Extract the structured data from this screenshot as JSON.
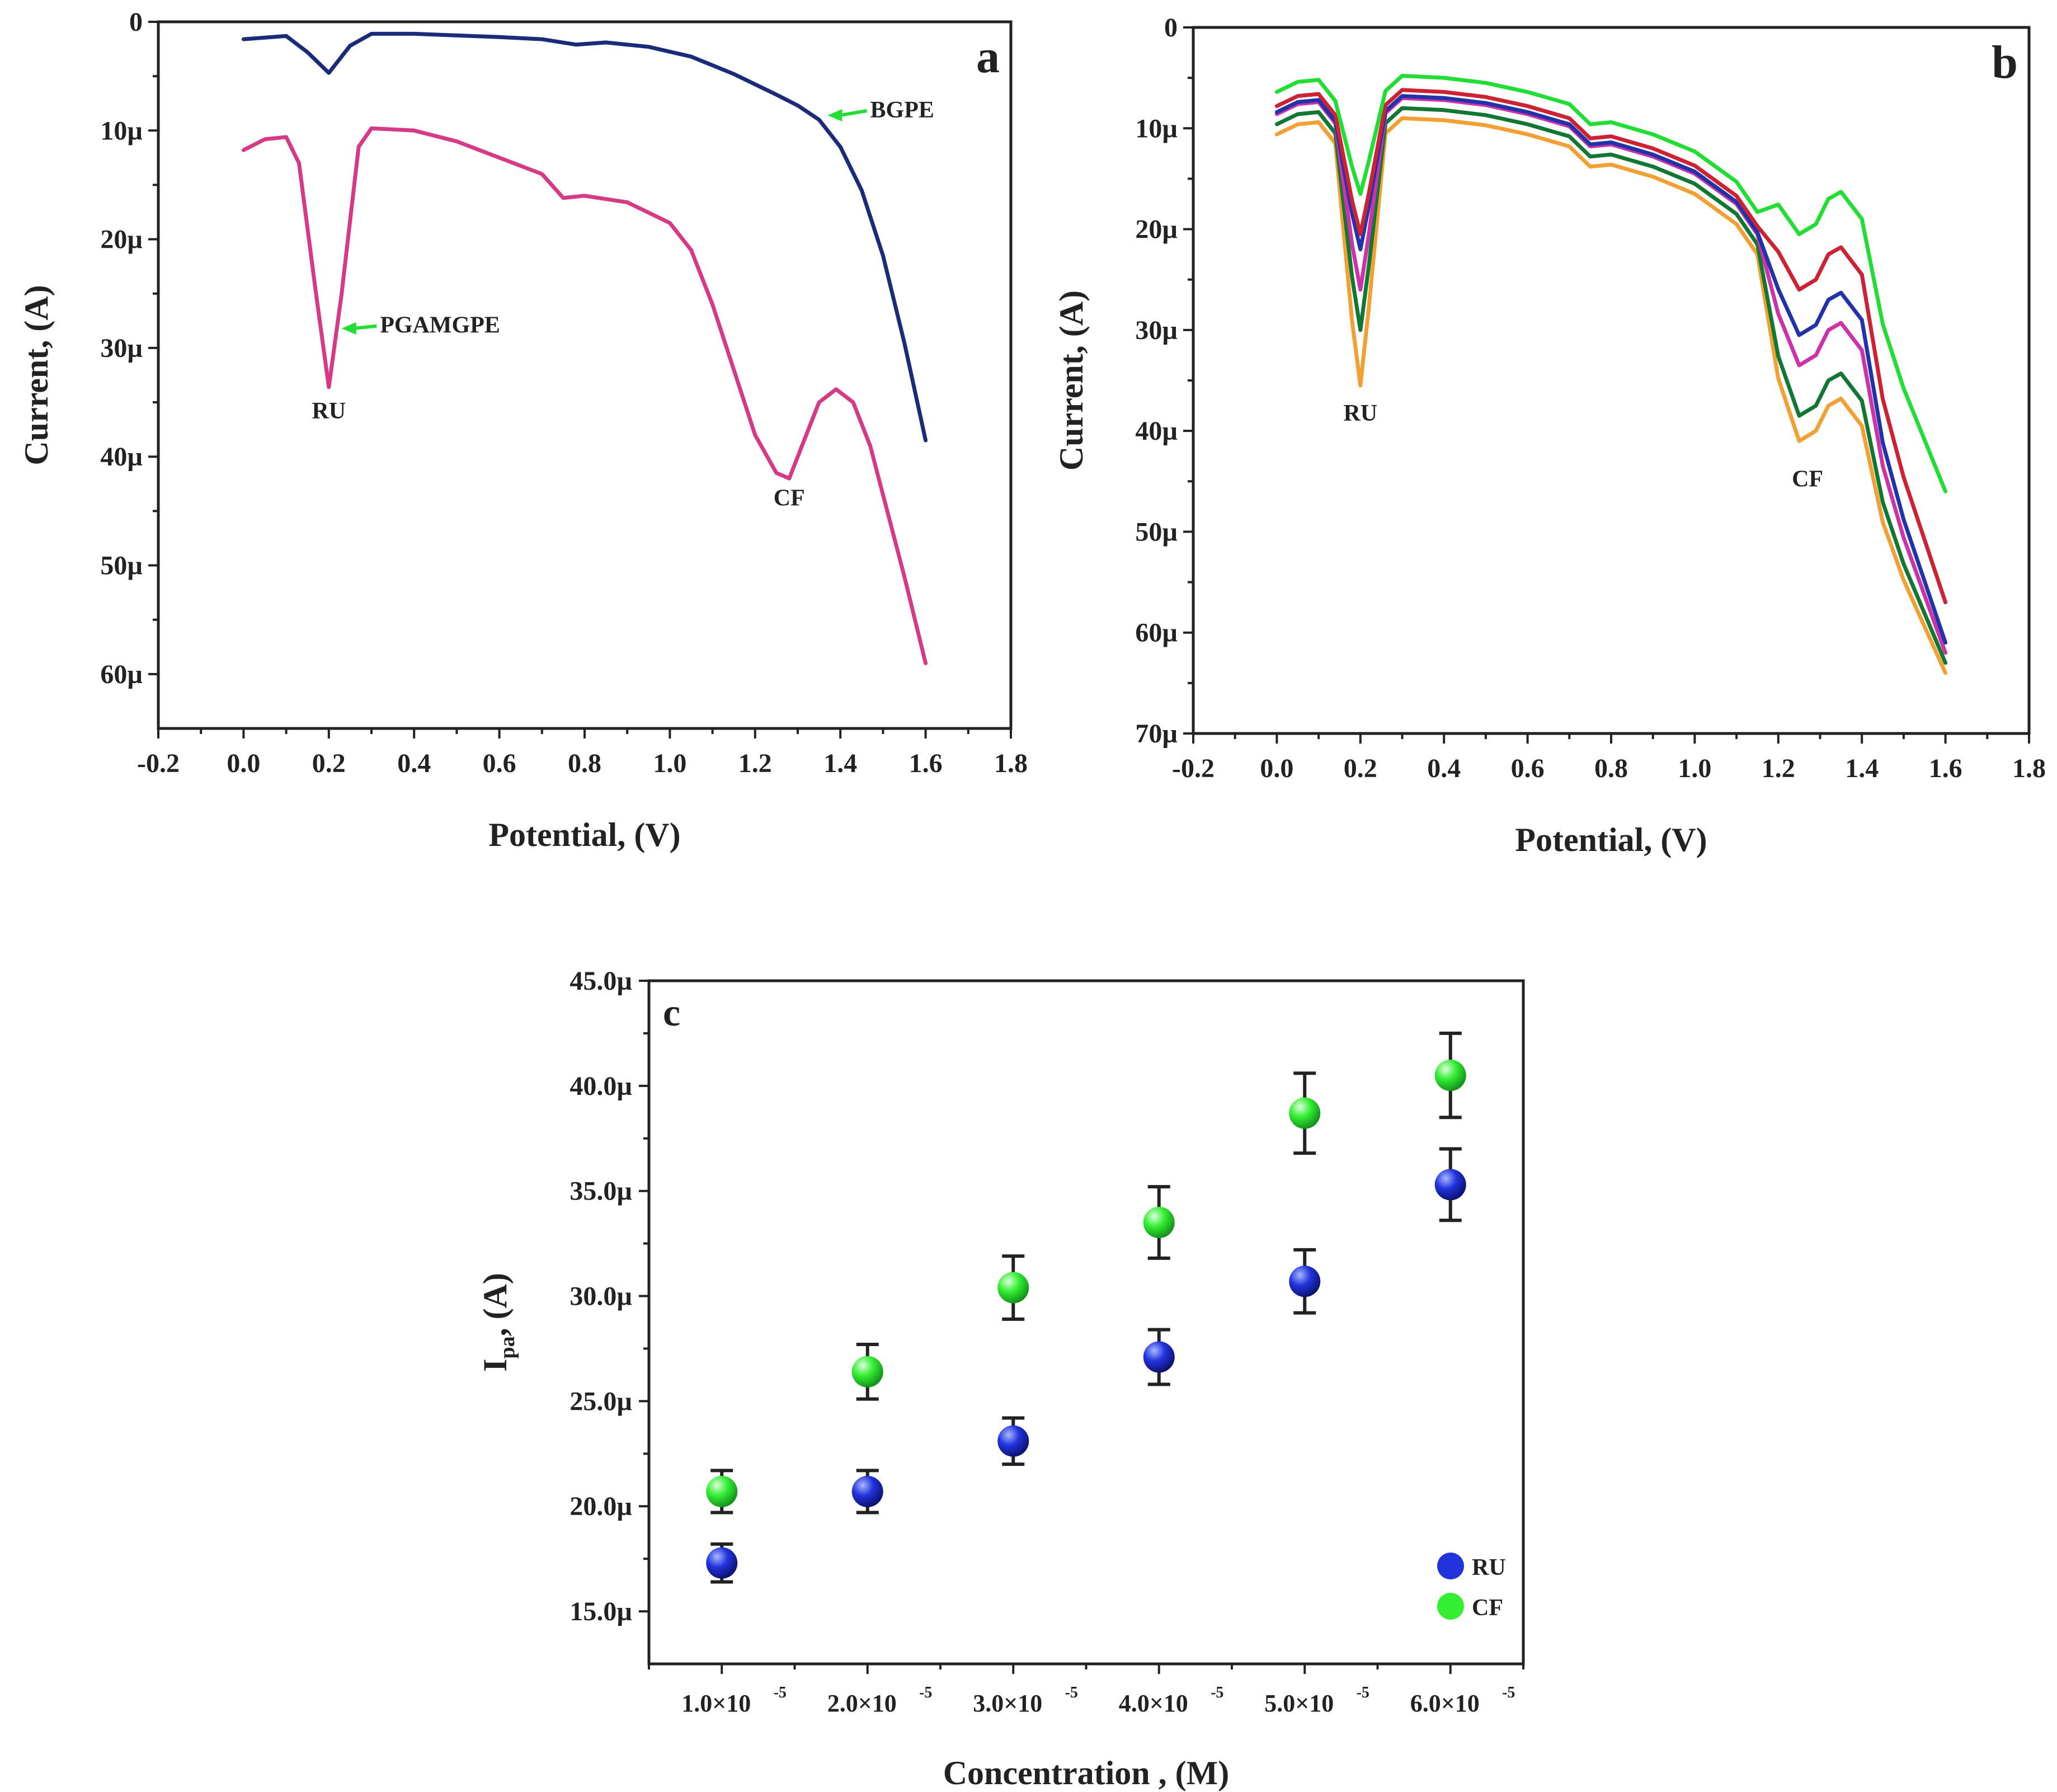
{
  "colors": {
    "blue_curve": "#1a2b7a",
    "pink_curve": "#d63a86",
    "arrow_green": "#22dd33",
    "ru_marker": "#2233dd",
    "cf_marker": "#33ee33",
    "axis": "#222222"
  },
  "chart_data": [
    {
      "id": "a",
      "type": "line",
      "panel_label": "a",
      "xlabel": "Potential, (V)",
      "ylabel": "Current, (A)",
      "xlim": [
        -0.2,
        1.8
      ],
      "ylim": [
        0,
        65
      ],
      "y_inverted": true,
      "x_ticks": [
        -0.2,
        0.0,
        0.2,
        0.4,
        0.6,
        0.8,
        1.0,
        1.2,
        1.4,
        1.6,
        1.8
      ],
      "x_tick_labels": [
        "-0.2",
        "0.0",
        "0.2",
        "0.4",
        "0.6",
        "0.8",
        "1.0",
        "1.2",
        "1.4",
        "1.6",
        "1.8"
      ],
      "y_ticks": [
        0,
        10,
        20,
        30,
        40,
        50,
        60
      ],
      "y_tick_labels": [
        "0",
        "10µ",
        "20µ",
        "30µ",
        "40µ",
        "50µ",
        "60µ"
      ],
      "series": [
        {
          "name": "BGPE",
          "color_key": "blue_curve",
          "x": [
            0.0,
            0.1,
            0.15,
            0.2,
            0.25,
            0.3,
            0.4,
            0.6,
            0.7,
            0.78,
            0.85,
            0.95,
            1.05,
            1.15,
            1.25,
            1.3,
            1.35,
            1.4,
            1.45,
            1.5,
            1.55,
            1.6
          ],
          "y": [
            1.6,
            1.3,
            2.8,
            4.7,
            2.2,
            1.1,
            1.1,
            1.4,
            1.6,
            2.1,
            1.9,
            2.3,
            3.2,
            4.8,
            6.7,
            7.7,
            9.0,
            11.5,
            15.5,
            21.5,
            29.5,
            38.5
          ]
        },
        {
          "name": "PGAMGPE",
          "color_key": "pink_curve",
          "x": [
            0.0,
            0.05,
            0.1,
            0.13,
            0.17,
            0.2,
            0.23,
            0.27,
            0.3,
            0.4,
            0.5,
            0.6,
            0.7,
            0.75,
            0.8,
            0.9,
            1.0,
            1.05,
            1.1,
            1.15,
            1.2,
            1.25,
            1.28,
            1.31,
            1.35,
            1.39,
            1.43,
            1.47,
            1.5,
            1.55,
            1.6
          ],
          "y": [
            11.8,
            10.8,
            10.6,
            13.0,
            25.0,
            33.6,
            25.0,
            11.5,
            9.8,
            10.0,
            11.0,
            12.5,
            14.0,
            16.2,
            16.0,
            16.6,
            18.5,
            21.0,
            26.0,
            32.0,
            38.0,
            41.5,
            42.0,
            39.0,
            35.0,
            33.8,
            35.0,
            39.0,
            43.5,
            51.0,
            59.0
          ]
        }
      ],
      "annotations": [
        {
          "text": "RU",
          "x": 0.2,
          "y": 36.5
        },
        {
          "text": "CF",
          "x": 1.28,
          "y": 44.5
        },
        {
          "text": "PGAMGPE",
          "x": 0.32,
          "y": 28.6,
          "arrow_to": [
            0.23,
            28.2
          ]
        },
        {
          "text": "BGPE",
          "x": 1.47,
          "y": 8.8,
          "arrow_to": [
            1.37,
            8.6
          ]
        }
      ]
    },
    {
      "id": "b",
      "type": "line",
      "panel_label": "b",
      "xlabel": "Potential, (V)",
      "ylabel": "Current, (A)",
      "xlim": [
        -0.2,
        1.8
      ],
      "ylim": [
        0,
        70
      ],
      "y_inverted": true,
      "x_ticks": [
        -0.2,
        0.0,
        0.2,
        0.4,
        0.6,
        0.8,
        1.0,
        1.2,
        1.4,
        1.6,
        1.8
      ],
      "x_tick_labels": [
        "-0.2",
        "0.0",
        "0.2",
        "0.4",
        "0.6",
        "0.8",
        "1.0",
        "1.2",
        "1.4",
        "1.6",
        "1.8"
      ],
      "y_ticks": [
        0,
        10,
        20,
        30,
        40,
        50,
        60,
        70
      ],
      "y_tick_labels": [
        "0",
        "10µ",
        "20µ",
        "30µ",
        "40µ",
        "50µ",
        "60µ",
        "70µ"
      ],
      "series": [
        {
          "name": "green",
          "color": "#22dd33",
          "base": 5.8,
          "ru_peak": 16.5,
          "cf_peak": 20.5,
          "end": 46.0
        },
        {
          "name": "red",
          "color": "#cc2233",
          "base": 7.2,
          "ru_peak": 20.5,
          "cf_peak": 26.0,
          "end": 57.0
        },
        {
          "name": "blue",
          "color": "#2233aa",
          "base": 7.8,
          "ru_peak": 22.0,
          "cf_peak": 30.5,
          "end": 61.0
        },
        {
          "name": "magenta",
          "color": "#cc33aa",
          "base": 8.0,
          "ru_peak": 26.0,
          "cf_peak": 33.5,
          "end": 62.0
        },
        {
          "name": "dark-green",
          "color": "#117733",
          "base": 9.0,
          "ru_peak": 30.0,
          "cf_peak": 38.5,
          "end": 63.0
        },
        {
          "name": "orange",
          "color": "#f2a033",
          "base": 10.0,
          "ru_peak": 35.5,
          "cf_peak": 41.0,
          "end": 64.0
        }
      ],
      "annotations": [
        {
          "text": "RU",
          "x": 0.2,
          "y": 39.0
        },
        {
          "text": "CF",
          "x": 1.27,
          "y": 45.5
        }
      ]
    },
    {
      "id": "c",
      "type": "scatter",
      "panel_label": "c",
      "xlabel": "Concentration , (M)",
      "ylabel_main": "I",
      "ylabel_sub": "pa",
      "ylabel_rest": ", (A)",
      "x_positions": [
        1,
        2,
        3,
        4,
        5,
        6
      ],
      "x_tick_labels": [
        "1.0×10",
        "2.0×10",
        "3.0×10",
        "4.0×10",
        "5.0×10",
        "6.0×10"
      ],
      "x_tick_sup": "-5",
      "xlim": [
        0.5,
        6.5
      ],
      "ylim": [
        12.5,
        45.0
      ],
      "y_ticks": [
        15,
        20,
        25,
        30,
        35,
        40,
        45
      ],
      "y_tick_labels": [
        "15.0µ",
        "20.0µ",
        "25.0µ",
        "30.0µ",
        "35.0µ",
        "40.0µ",
        "45.0µ"
      ],
      "series": [
        {
          "name": "RU",
          "color_key": "ru_marker",
          "values": [
            17.3,
            20.7,
            23.1,
            27.1,
            30.7,
            35.3
          ],
          "errors": [
            0.9,
            1.0,
            1.1,
            1.3,
            1.5,
            1.7
          ]
        },
        {
          "name": "CF",
          "color_key": "cf_marker",
          "values": [
            20.7,
            26.4,
            30.4,
            33.5,
            38.7,
            40.5
          ],
          "errors": [
            1.0,
            1.3,
            1.5,
            1.7,
            1.9,
            2.0
          ]
        }
      ],
      "legend": {
        "position": "bottom-right",
        "entries": [
          "RU",
          "CF"
        ]
      }
    }
  ]
}
